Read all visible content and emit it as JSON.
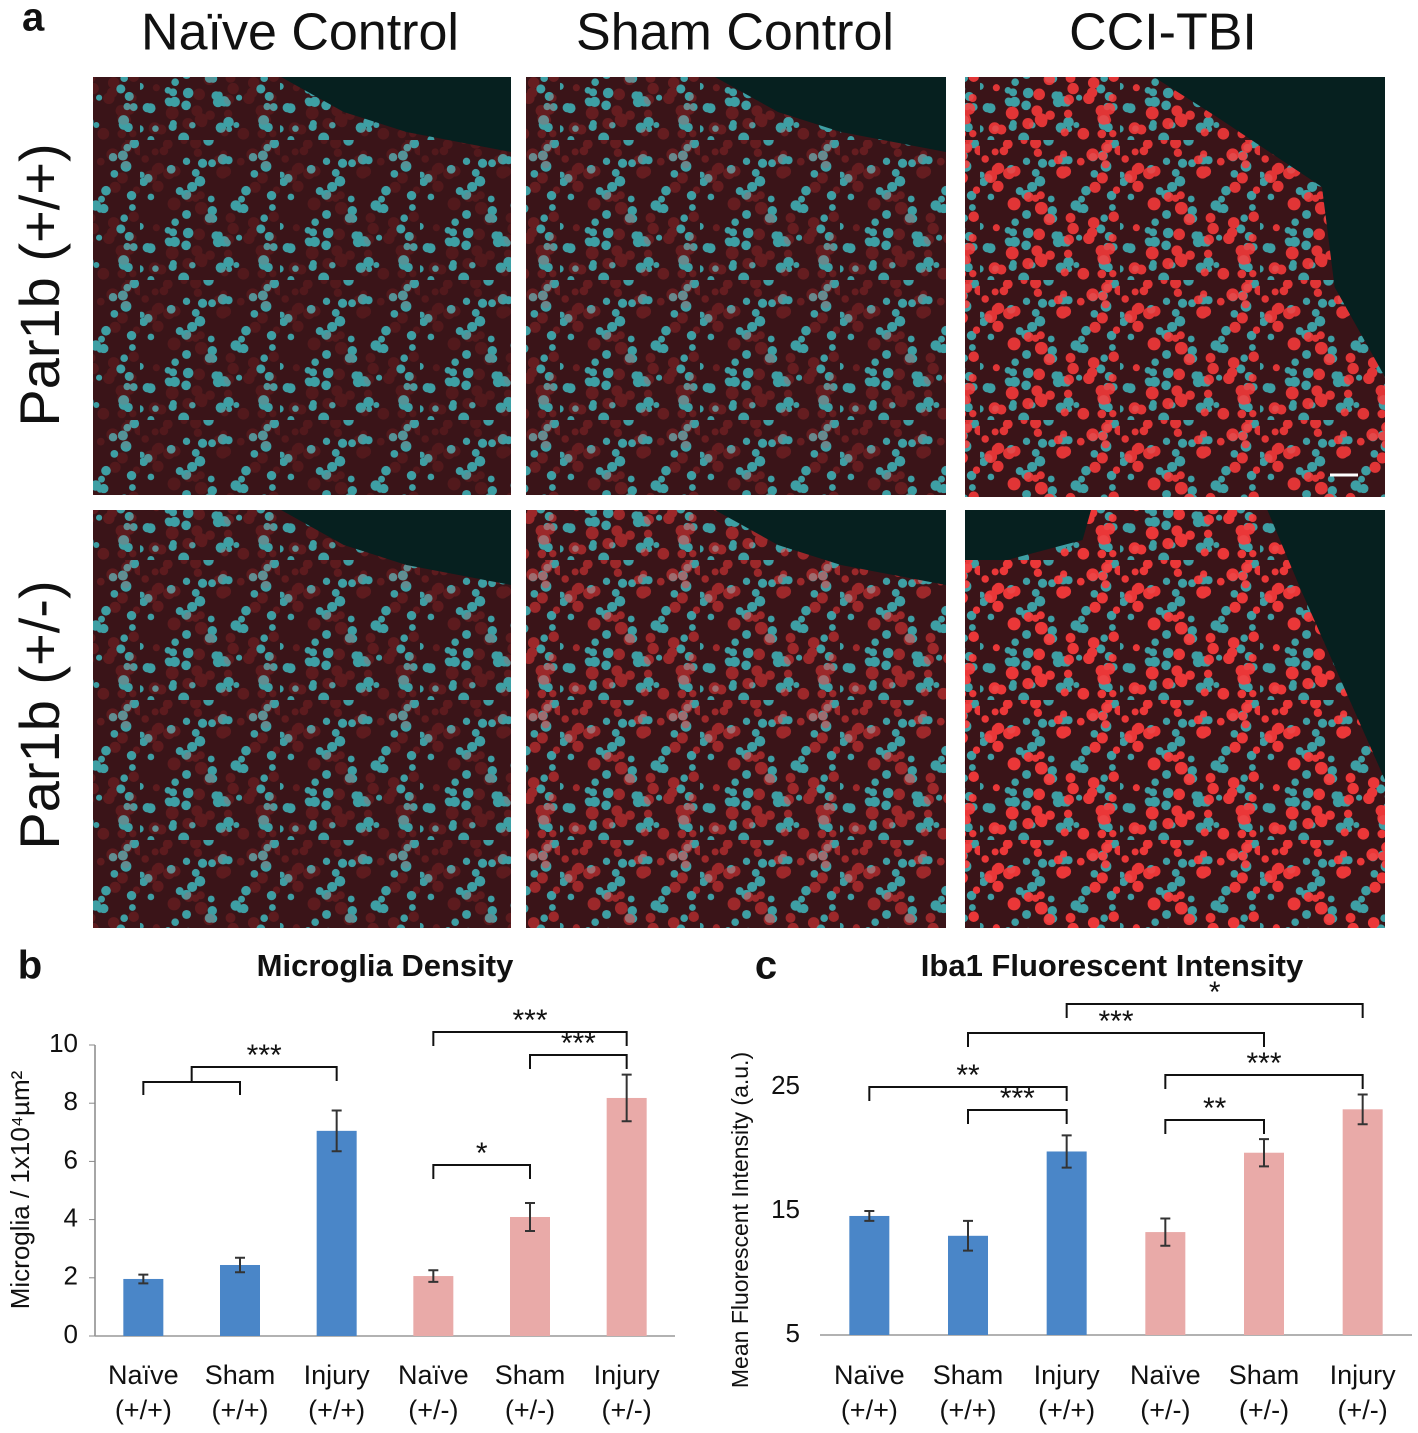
{
  "panel_a": {
    "label": "a",
    "columns": [
      "Naïve Control",
      "Sham Control",
      "CCI-TBI"
    ],
    "rows": [
      "Par1b (+/+)",
      "Par1b (+/-)"
    ]
  },
  "chart_data": [
    {
      "type": "bar",
      "panel_label": "b",
      "title": "Microglia Density",
      "y_label": "Microglia / 1x10⁴µm²",
      "categories": [
        [
          "Naïve",
          "(+/+)"
        ],
        [
          "Sham",
          "(+/+)"
        ],
        [
          "Injury",
          "(+/+)"
        ],
        [
          "Naïve",
          "(+/-)"
        ],
        [
          "Sham",
          "(+/-)"
        ],
        [
          "Injury",
          "(+/-)"
        ]
      ],
      "values": [
        1.96,
        2.44,
        7.05,
        2.06,
        4.09,
        8.18
      ],
      "errors": [
        0.15,
        0.25,
        0.7,
        0.2,
        0.48,
        0.8
      ],
      "colors": [
        "#4a86c8",
        "#4a86c8",
        "#4a86c8",
        "#e9aaa8",
        "#e9aaa8",
        "#e9aaa8"
      ],
      "ylim": [
        0,
        10
      ],
      "yticks": [
        0,
        2,
        4,
        6,
        8,
        10
      ],
      "y_axis_line": true,
      "annotations": [
        {
          "text": "***",
          "from": [
            0,
            1
          ],
          "to": [
            2
          ]
        },
        {
          "text": "***",
          "from": [
            3
          ],
          "to": [
            5
          ]
        },
        {
          "text": "***",
          "from": [
            4
          ],
          "to": [
            5
          ]
        },
        {
          "text": "*",
          "from": [
            3
          ],
          "to": [
            4
          ]
        }
      ]
    },
    {
      "type": "bar",
      "panel_label": "c",
      "title": "Iba1 Fluorescent Intensity",
      "y_label": "Mean Fluorescent Intensity (a.u.)",
      "categories": [
        [
          "Naïve",
          "(+/+)"
        ],
        [
          "Sham",
          "(+/+)"
        ],
        [
          "Injury",
          "(+/+)"
        ],
        [
          "Naïve",
          "(+/-)"
        ],
        [
          "Sham",
          "(+/-)"
        ],
        [
          "Injury",
          "(+/-)"
        ]
      ],
      "values": [
        14.6,
        13.0,
        19.8,
        13.3,
        19.7,
        23.2
      ],
      "errors": [
        0.4,
        1.2,
        1.3,
        1.1,
        1.1,
        1.2
      ],
      "colors": [
        "#4a86c8",
        "#4a86c8",
        "#4a86c8",
        "#e9aaa8",
        "#e9aaa8",
        "#e9aaa8"
      ],
      "ylim": [
        5,
        25
      ],
      "yticks": [
        5,
        15,
        25
      ],
      "y_axis_line": false,
      "annotations": [
        {
          "text": "*",
          "from": [
            2
          ],
          "to": [
            5
          ]
        },
        {
          "text": "***",
          "from": [
            1
          ],
          "to": [
            4
          ]
        },
        {
          "text": "**",
          "from": [
            0
          ],
          "to": [
            2
          ]
        },
        {
          "text": "***",
          "from": [
            1
          ],
          "to": [
            2
          ]
        },
        {
          "text": "***",
          "from": [
            3
          ],
          "to": [
            5
          ]
        },
        {
          "text": "**",
          "from": [
            3
          ],
          "to": [
            4
          ]
        }
      ]
    }
  ]
}
